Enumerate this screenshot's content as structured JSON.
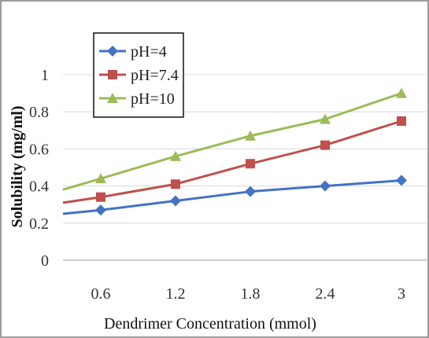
{
  "chart_data": {
    "type": "line",
    "title": "",
    "xlabel": "Dendrimer Concentration (mmol)",
    "ylabel": "Solubility (mg/ml)",
    "categories": [
      "0.6",
      "1.2",
      "1.8",
      "2.4",
      "3"
    ],
    "x_tick_labels": [
      "0.6",
      "1.2",
      "1.8",
      "2.4",
      "3"
    ],
    "y_tick_labels": [
      "0",
      "0.2",
      "0.4",
      "0.6",
      "0.8",
      "1"
    ],
    "ylim": [
      0,
      1
    ],
    "grid": "horizontal",
    "legend_position": "top-left",
    "series": [
      {
        "name": "pH=4",
        "values": [
          0.27,
          0.32,
          0.37,
          0.4,
          0.43
        ],
        "start_value": 0.25,
        "color": "#4472C4",
        "marker": "diamond"
      },
      {
        "name": "pH=7.4",
        "values": [
          0.34,
          0.41,
          0.52,
          0.62,
          0.75
        ],
        "start_value": 0.31,
        "color": "#C0504D",
        "marker": "square"
      },
      {
        "name": "pH=10",
        "values": [
          0.44,
          0.56,
          0.67,
          0.76,
          0.9
        ],
        "start_value": 0.38,
        "color": "#9BBB59",
        "marker": "triangle"
      }
    ]
  }
}
